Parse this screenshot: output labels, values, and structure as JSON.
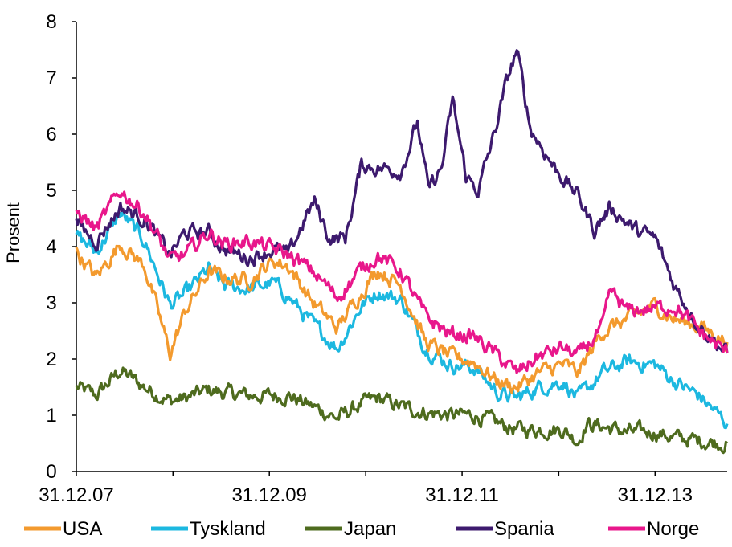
{
  "chart_data": {
    "type": "line",
    "title": "",
    "xlabel": "",
    "ylabel": "Prosent",
    "ylim": [
      0,
      8
    ],
    "yticks": [
      0,
      1,
      2,
      3,
      4,
      5,
      6,
      7,
      8
    ],
    "xlim": [
      "2007-12-31",
      "2014-09-30"
    ],
    "xticks": [
      {
        "label": "31.12.07",
        "date": "2007-12-31"
      },
      {
        "label": "31.12.09",
        "date": "2009-12-31"
      },
      {
        "label": "31.12.11",
        "date": "2011-12-31"
      },
      {
        "label": "31.12.13",
        "date": "2013-12-31"
      }
    ],
    "grid": false,
    "legend_position": "bottom",
    "series": [
      {
        "name": "USA",
        "color": "#F39A2E",
        "points": [
          [
            "2007-12-31",
            3.9
          ],
          [
            "2008-03-15",
            3.45
          ],
          [
            "2008-06-15",
            4.05
          ],
          [
            "2008-09-15",
            3.65
          ],
          [
            "2008-12-20",
            2.1
          ],
          [
            "2009-02-15",
            2.85
          ],
          [
            "2009-05-15",
            3.55
          ],
          [
            "2009-07-15",
            3.45
          ],
          [
            "2009-10-15",
            3.4
          ],
          [
            "2010-01-15",
            3.75
          ],
          [
            "2010-03-15",
            3.65
          ],
          [
            "2010-06-15",
            3.0
          ],
          [
            "2010-09-15",
            2.55
          ],
          [
            "2010-12-15",
            3.2
          ],
          [
            "2011-02-15",
            3.6
          ],
          [
            "2011-05-15",
            3.3
          ],
          [
            "2011-08-15",
            2.3
          ],
          [
            "2011-11-15",
            2.05
          ],
          [
            "2012-02-15",
            1.95
          ],
          [
            "2012-05-15",
            1.6
          ],
          [
            "2012-07-25",
            1.5
          ],
          [
            "2012-10-15",
            1.75
          ],
          [
            "2013-01-15",
            1.9
          ],
          [
            "2013-03-15",
            1.75
          ],
          [
            "2013-06-15",
            2.5
          ],
          [
            "2013-09-15",
            2.7
          ],
          [
            "2013-12-31",
            2.95
          ],
          [
            "2014-03-15",
            2.7
          ],
          [
            "2014-06-15",
            2.6
          ],
          [
            "2014-09-30",
            2.3
          ]
        ]
      },
      {
        "name": "Tyskland",
        "color": "#1CB8E0",
        "points": [
          [
            "2007-12-31",
            4.2
          ],
          [
            "2008-03-15",
            3.9
          ],
          [
            "2008-06-15",
            4.6
          ],
          [
            "2008-09-15",
            4.1
          ],
          [
            "2008-12-20",
            2.95
          ],
          [
            "2009-02-15",
            3.15
          ],
          [
            "2009-05-15",
            3.6
          ],
          [
            "2009-07-15",
            3.3
          ],
          [
            "2009-10-15",
            3.25
          ],
          [
            "2010-01-15",
            3.35
          ],
          [
            "2010-03-15",
            3.1
          ],
          [
            "2010-06-15",
            2.6
          ],
          [
            "2010-09-15",
            2.2
          ],
          [
            "2010-12-15",
            2.95
          ],
          [
            "2011-02-15",
            3.2
          ],
          [
            "2011-05-15",
            3.05
          ],
          [
            "2011-08-15",
            2.2
          ],
          [
            "2011-11-15",
            1.9
          ],
          [
            "2012-02-15",
            1.85
          ],
          [
            "2012-05-15",
            1.4
          ],
          [
            "2012-07-25",
            1.3
          ],
          [
            "2012-10-15",
            1.5
          ],
          [
            "2013-01-15",
            1.6
          ],
          [
            "2013-03-15",
            1.3
          ],
          [
            "2013-06-15",
            1.75
          ],
          [
            "2013-09-15",
            1.95
          ],
          [
            "2013-12-31",
            1.9
          ],
          [
            "2014-03-15",
            1.6
          ],
          [
            "2014-06-15",
            1.35
          ],
          [
            "2014-09-30",
            0.85
          ]
        ]
      },
      {
        "name": "Japan",
        "color": "#4E6B1E",
        "points": [
          [
            "2007-12-31",
            1.5
          ],
          [
            "2008-03-15",
            1.35
          ],
          [
            "2008-06-15",
            1.8
          ],
          [
            "2008-09-15",
            1.5
          ],
          [
            "2008-12-20",
            1.25
          ],
          [
            "2009-02-15",
            1.3
          ],
          [
            "2009-05-15",
            1.45
          ],
          [
            "2009-07-15",
            1.4
          ],
          [
            "2009-10-15",
            1.35
          ],
          [
            "2010-01-15",
            1.35
          ],
          [
            "2010-03-15",
            1.35
          ],
          [
            "2010-06-15",
            1.15
          ],
          [
            "2010-09-15",
            0.95
          ],
          [
            "2010-12-15",
            1.2
          ],
          [
            "2011-02-15",
            1.3
          ],
          [
            "2011-05-15",
            1.15
          ],
          [
            "2011-08-15",
            1.05
          ],
          [
            "2011-11-15",
            1.0
          ],
          [
            "2012-02-15",
            1.0
          ],
          [
            "2012-05-15",
            0.85
          ],
          [
            "2012-07-25",
            0.75
          ],
          [
            "2012-10-15",
            0.75
          ],
          [
            "2013-01-15",
            0.75
          ],
          [
            "2013-03-15",
            0.55
          ],
          [
            "2013-04-15",
            0.85
          ],
          [
            "2013-06-15",
            0.8
          ],
          [
            "2013-09-15",
            0.7
          ],
          [
            "2013-12-31",
            0.7
          ],
          [
            "2014-03-15",
            0.6
          ],
          [
            "2014-06-15",
            0.55
          ],
          [
            "2014-09-30",
            0.5
          ]
        ]
      },
      {
        "name": "Spania",
        "color": "#3D1A6E",
        "points": [
          [
            "2007-12-31",
            4.4
          ],
          [
            "2008-03-15",
            4.1
          ],
          [
            "2008-06-15",
            4.7
          ],
          [
            "2008-09-15",
            4.5
          ],
          [
            "2008-12-20",
            3.85
          ],
          [
            "2009-02-15",
            4.25
          ],
          [
            "2009-05-15",
            4.25
          ],
          [
            "2009-07-15",
            3.95
          ],
          [
            "2009-10-15",
            3.8
          ],
          [
            "2010-01-15",
            3.95
          ],
          [
            "2010-03-15",
            3.85
          ],
          [
            "2010-05-15",
            4.5
          ],
          [
            "2010-06-20",
            4.8
          ],
          [
            "2010-08-15",
            4.15
          ],
          [
            "2010-10-15",
            4.15
          ],
          [
            "2010-12-15",
            5.45
          ],
          [
            "2011-02-15",
            5.4
          ],
          [
            "2011-05-15",
            5.35
          ],
          [
            "2011-07-15",
            6.2
          ],
          [
            "2011-08-25",
            5.0
          ],
          [
            "2011-10-15",
            5.4
          ],
          [
            "2011-11-25",
            6.6
          ],
          [
            "2012-01-15",
            5.25
          ],
          [
            "2012-03-01",
            5.0
          ],
          [
            "2012-05-01",
            6.0
          ],
          [
            "2012-06-15",
            6.9
          ],
          [
            "2012-07-25",
            7.5
          ],
          [
            "2012-09-15",
            6.1
          ],
          [
            "2012-12-15",
            5.4
          ],
          [
            "2013-03-15",
            4.9
          ],
          [
            "2013-05-15",
            4.3
          ],
          [
            "2013-07-15",
            4.7
          ],
          [
            "2013-10-15",
            4.3
          ],
          [
            "2013-12-31",
            4.15
          ],
          [
            "2014-03-15",
            3.3
          ],
          [
            "2014-06-15",
            2.6
          ],
          [
            "2014-09-30",
            2.1
          ]
        ]
      },
      {
        "name": "Norge",
        "color": "#E8178B",
        "points": [
          [
            "2007-12-31",
            4.65
          ],
          [
            "2008-03-15",
            4.3
          ],
          [
            "2008-06-15",
            5.0
          ],
          [
            "2008-09-15",
            4.6
          ],
          [
            "2008-12-20",
            3.75
          ],
          [
            "2009-02-15",
            3.85
          ],
          [
            "2009-05-15",
            4.25
          ],
          [
            "2009-07-15",
            4.05
          ],
          [
            "2009-10-15",
            4.1
          ],
          [
            "2010-01-15",
            3.95
          ],
          [
            "2010-03-15",
            3.85
          ],
          [
            "2010-06-15",
            3.55
          ],
          [
            "2010-09-15",
            3.1
          ],
          [
            "2010-12-15",
            3.6
          ],
          [
            "2011-02-15",
            3.85
          ],
          [
            "2011-05-15",
            3.55
          ],
          [
            "2011-08-15",
            2.75
          ],
          [
            "2011-11-15",
            2.45
          ],
          [
            "2012-02-15",
            2.4
          ],
          [
            "2012-05-15",
            2.05
          ],
          [
            "2012-07-25",
            1.75
          ],
          [
            "2012-10-15",
            2.05
          ],
          [
            "2013-01-15",
            2.2
          ],
          [
            "2013-03-15",
            2.05
          ],
          [
            "2013-06-15",
            2.55
          ],
          [
            "2013-07-15",
            3.2
          ],
          [
            "2013-09-15",
            2.85
          ],
          [
            "2013-12-31",
            2.9
          ],
          [
            "2014-03-15",
            2.95
          ],
          [
            "2014-06-15",
            2.5
          ],
          [
            "2014-09-30",
            2.1
          ]
        ]
      }
    ]
  }
}
